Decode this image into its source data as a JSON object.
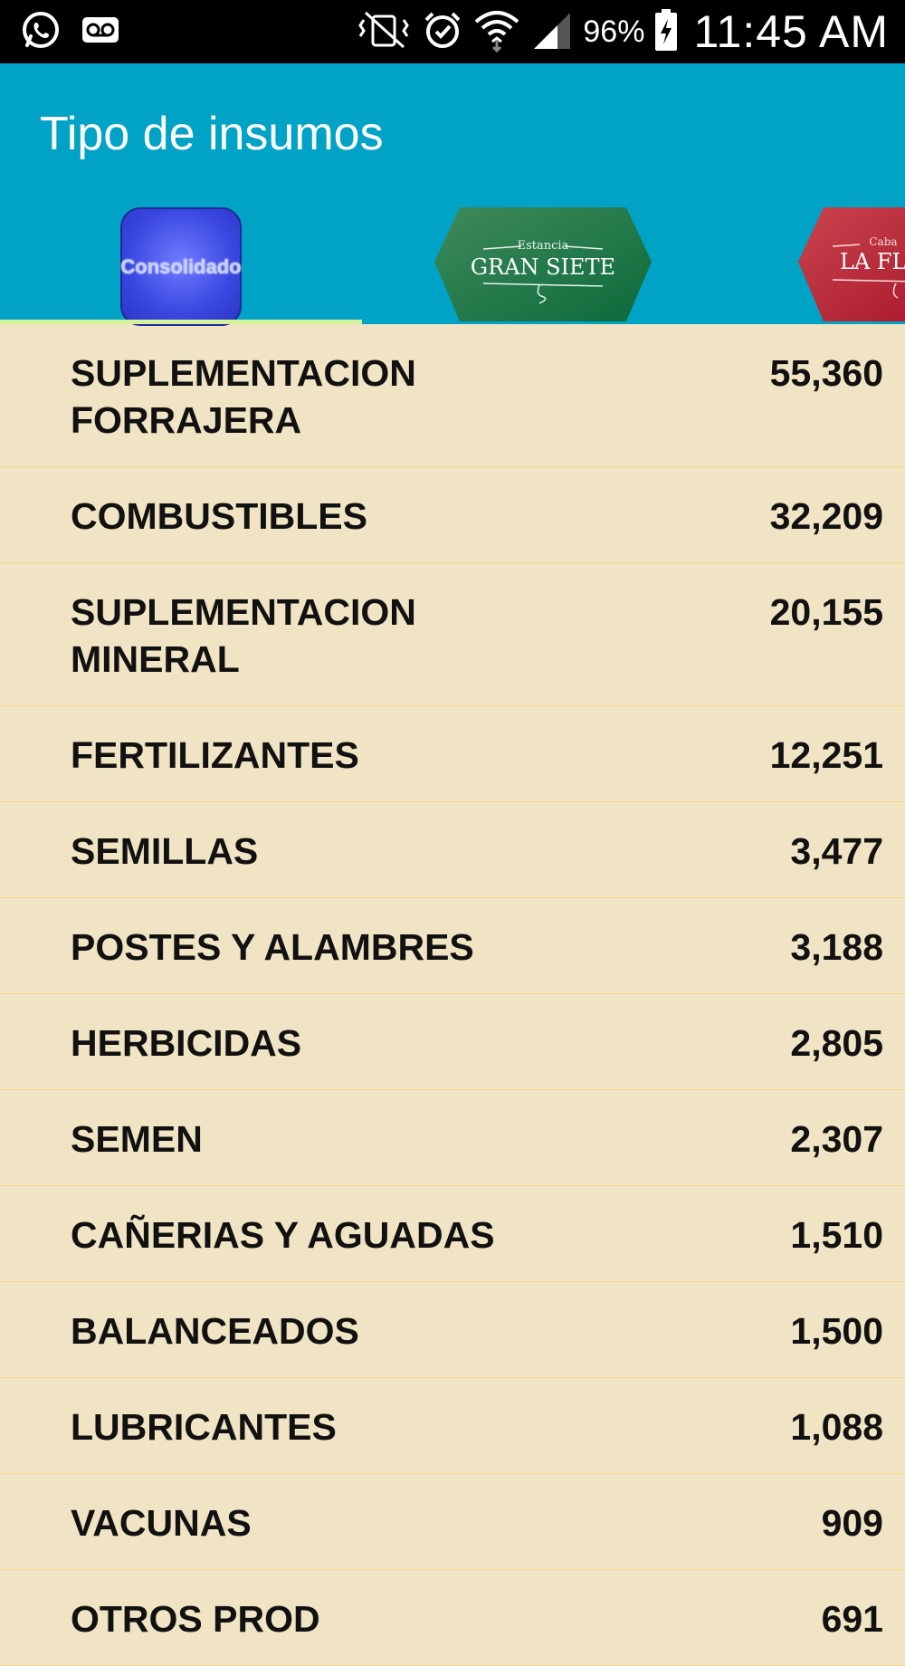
{
  "status_bar": {
    "battery_percent": "96%",
    "time": "11:45 AM",
    "icons": [
      "whatsapp-icon",
      "voicemail-icon",
      "vibrate-icon",
      "alarm-icon",
      "wifi-icon",
      "signal-icon",
      "battery-charging-icon"
    ]
  },
  "app_bar": {
    "title": "Tipo de insumos",
    "background_color": "#00a3c6",
    "tabs": [
      {
        "label": "Consolidado",
        "selected": true
      },
      {
        "label_top": "Estancia",
        "label_main": "GRAN SIETE",
        "selected": false
      },
      {
        "label_top": "Caba",
        "label_main": "LA FL",
        "selected": false
      }
    ]
  },
  "list": {
    "items": [
      {
        "name": "SUPLEMENTACION FORRAJERA",
        "value": "55,360"
      },
      {
        "name": "COMBUSTIBLES",
        "value": "32,209"
      },
      {
        "name": "SUPLEMENTACION MINERAL",
        "value": "20,155"
      },
      {
        "name": "FERTILIZANTES",
        "value": "12,251"
      },
      {
        "name": "SEMILLAS",
        "value": "3,477"
      },
      {
        "name": "POSTES Y ALAMBRES",
        "value": "3,188"
      },
      {
        "name": "HERBICIDAS",
        "value": "2,805"
      },
      {
        "name": "SEMEN",
        "value": "2,307"
      },
      {
        "name": "CAÑERIAS Y AGUADAS",
        "value": "1,510"
      },
      {
        "name": "BALANCEADOS",
        "value": "1,500"
      },
      {
        "name": "LUBRICANTES",
        "value": "1,088"
      },
      {
        "name": "VACUNAS",
        "value": "909"
      },
      {
        "name": "OTROS PROD",
        "value": "691"
      }
    ]
  }
}
